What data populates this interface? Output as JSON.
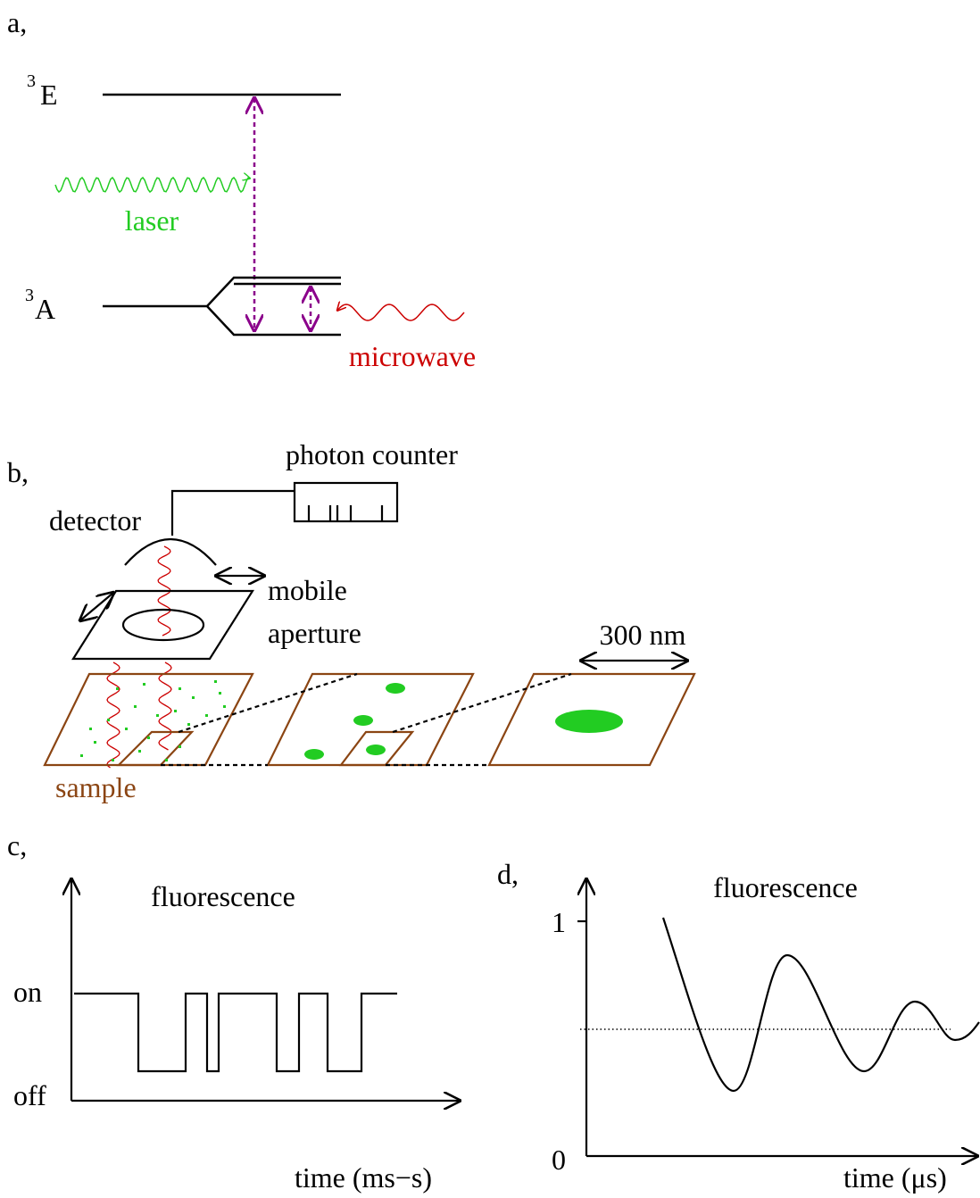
{
  "panel_a": {
    "label": "a,",
    "upper_state": {
      "sup": "3",
      "base": "E"
    },
    "lower_state": {
      "sup": "3",
      "base": "A"
    },
    "laser": "laser",
    "microwave": "microwave"
  },
  "panel_b": {
    "label": "b,",
    "photon_counter": "photon counter",
    "detector": "detector",
    "aperture": [
      "mobile",
      "aperture"
    ],
    "scale": "300 nm",
    "sample": "sample"
  },
  "panel_c": {
    "label": "c,",
    "title": "fluorescence",
    "on": "on",
    "off": "off",
    "x_label": "time (ms−s)"
  },
  "panel_d": {
    "label": "d,",
    "title": "fluorescence",
    "y_top": "1",
    "y_bottom": "0",
    "x_label": "time (μs)"
  }
}
